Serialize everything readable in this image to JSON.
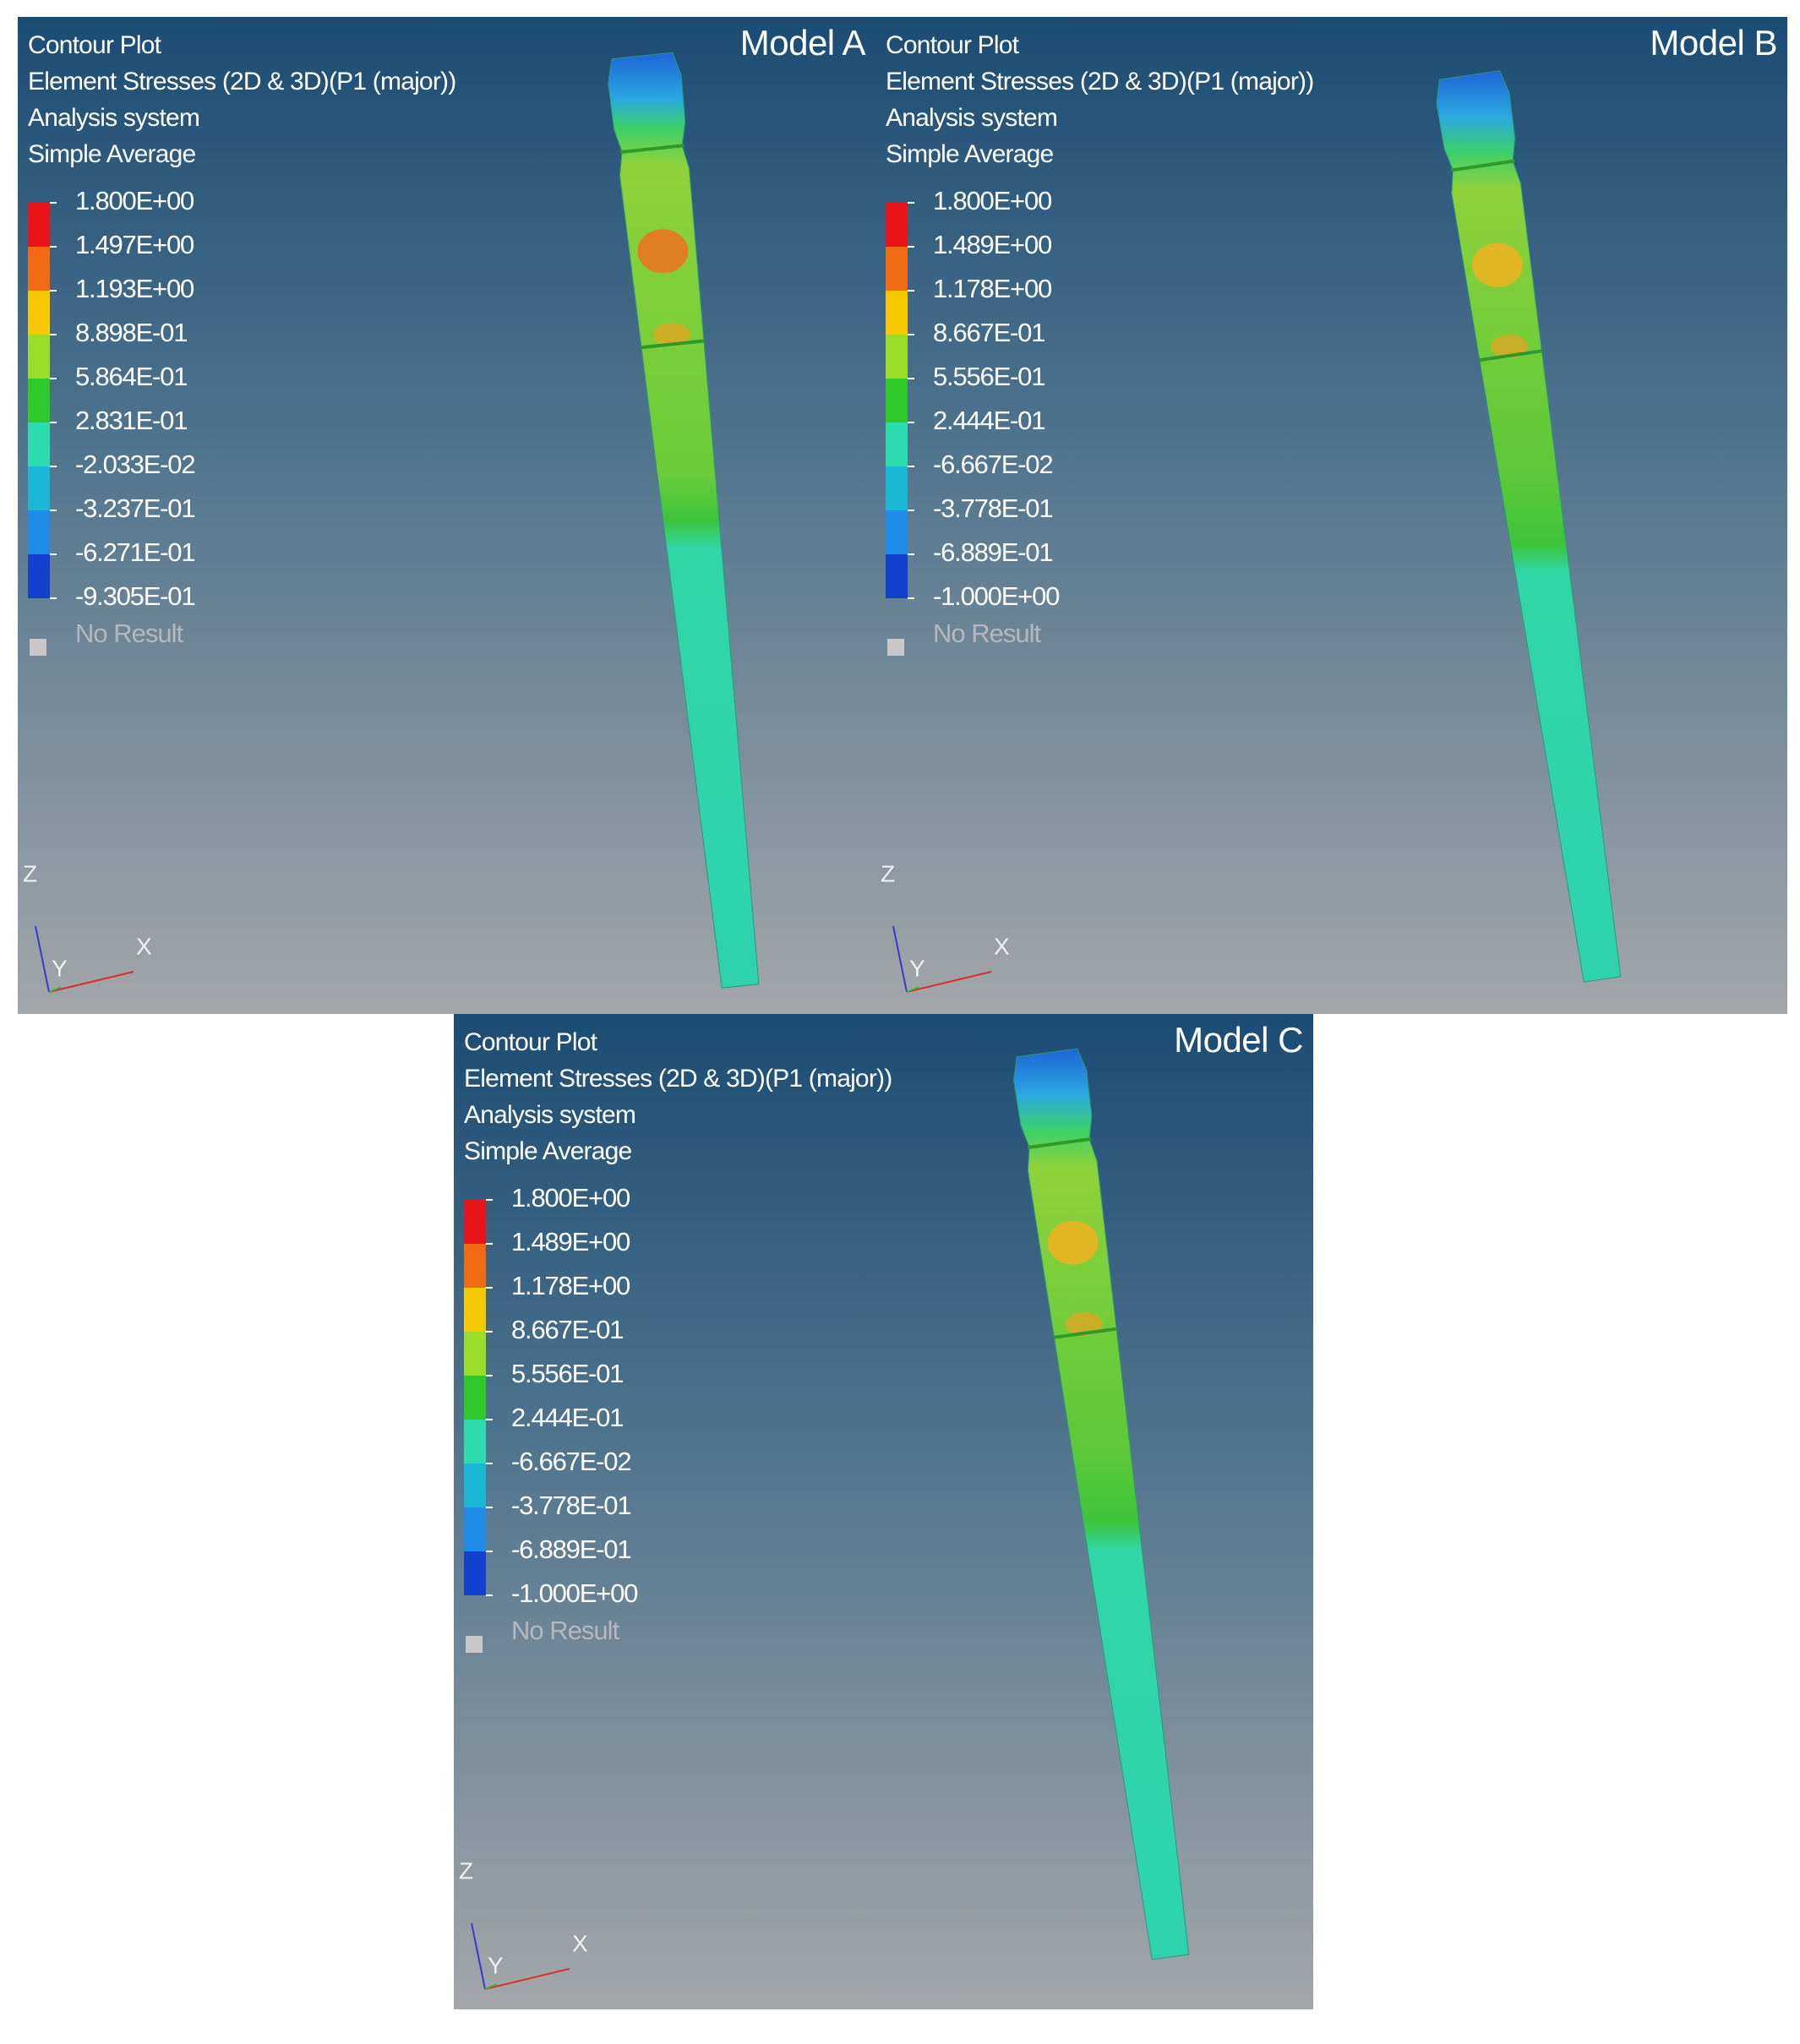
{
  "panels": [
    {
      "model": "Model A",
      "header": [
        "Contour Plot",
        "Element Stresses (2D & 3D)(P1 (major))",
        "Analysis system",
        "Simple Average"
      ],
      "legend": [
        "1.800E+00",
        "1.497E+00",
        "1.193E+00",
        "8.898E-01",
        "5.864E-01",
        "2.831E-01",
        "-2.033E-02",
        "-3.237E-01",
        "-6.271E-01",
        "-9.305E-01"
      ],
      "no_result": "No Result",
      "axes": {
        "z": "Z",
        "y": "Y",
        "x": "X"
      }
    },
    {
      "model": "Model B",
      "header": [
        "Contour Plot",
        "Element Stresses (2D & 3D)(P1 (major))",
        "Analysis system",
        "Simple Average"
      ],
      "legend": [
        "1.800E+00",
        "1.489E+00",
        "1.178E+00",
        "8.667E-01",
        "5.556E-01",
        "2.444E-01",
        "-6.667E-02",
        "-3.778E-01",
        "-6.889E-01",
        "-1.000E+00"
      ],
      "no_result": "No Result",
      "axes": {
        "z": "Z",
        "y": "Y",
        "x": "X"
      }
    },
    {
      "model": "Model C",
      "header": [
        "Contour Plot",
        "Element Stresses (2D & 3D)(P1 (major))",
        "Analysis system",
        "Simple Average"
      ],
      "legend": [
        "1.800E+00",
        "1.489E+00",
        "1.178E+00",
        "8.667E-01",
        "5.556E-01",
        "2.444E-01",
        "-6.667E-02",
        "-3.778E-01",
        "-6.889E-01",
        "-1.000E+00"
      ],
      "no_result": "No Result",
      "axes": {
        "z": "Z",
        "y": "Y",
        "x": "X"
      }
    }
  ]
}
